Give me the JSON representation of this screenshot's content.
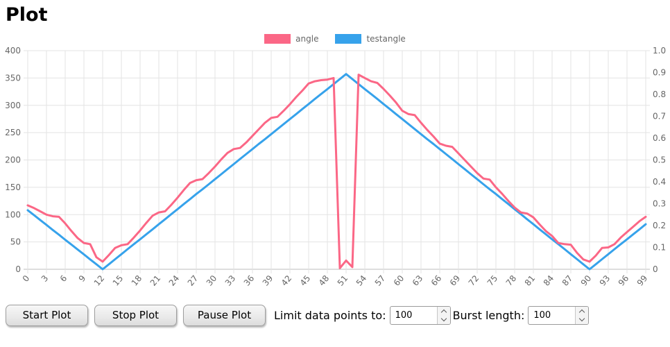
{
  "page": {
    "title": "Plot"
  },
  "controls": {
    "start_label": "Start Plot",
    "stop_label": "Stop Plot",
    "pause_label": "Pause Plot",
    "limit_label": "Limit data points to:",
    "limit_value": "100",
    "burst_label": "Burst length:",
    "burst_value": "100"
  },
  "chart_data": {
    "type": "line",
    "title": "",
    "xlabel": "",
    "ylabel": "",
    "grid": true,
    "legend_position": "top-center",
    "x_tick_step": 3,
    "x": [
      0,
      1,
      2,
      3,
      4,
      5,
      6,
      7,
      8,
      9,
      10,
      11,
      12,
      13,
      14,
      15,
      16,
      17,
      18,
      19,
      20,
      21,
      22,
      23,
      24,
      25,
      26,
      27,
      28,
      29,
      30,
      31,
      32,
      33,
      34,
      35,
      36,
      37,
      38,
      39,
      40,
      41,
      42,
      43,
      44,
      45,
      46,
      47,
      48,
      49,
      50,
      51,
      52,
      53,
      54,
      55,
      56,
      57,
      58,
      59,
      60,
      61,
      62,
      63,
      64,
      65,
      66,
      67,
      68,
      69,
      70,
      71,
      72,
      73,
      74,
      75,
      76,
      77,
      78,
      79,
      80,
      81,
      82,
      83,
      84,
      85,
      86,
      87,
      88,
      89,
      90,
      91,
      92,
      93,
      94,
      95,
      96,
      97,
      98,
      99
    ],
    "axes": {
      "left": {
        "min": 0,
        "max": 400,
        "ticks": [
          0,
          50,
          100,
          150,
          200,
          250,
          300,
          350,
          400
        ],
        "tick_labels": [
          "0",
          "50",
          "100",
          "150",
          "200",
          "250",
          "300",
          "350",
          "400"
        ]
      },
      "right": {
        "min": 0,
        "max": 1,
        "ticks": [
          0,
          0.1,
          0.2,
          0.3,
          0.4,
          0.5,
          0.6,
          0.7,
          0.8,
          0.9,
          1.0
        ],
        "tick_labels": [
          "0",
          "0.1",
          "0.2",
          "0.3",
          "0.4",
          "0.5",
          "0.6",
          "0.7",
          "0.8",
          "0.9",
          "1.0"
        ]
      }
    },
    "series": [
      {
        "name": "angle",
        "color": "#fb6786",
        "axis": "left",
        "values": [
          117,
          112,
          106,
          100,
          97,
          96,
          84,
          70,
          57,
          48,
          46,
          22,
          14,
          26,
          39,
          44,
          46,
          58,
          71,
          85,
          98,
          104,
          106,
          118,
          131,
          145,
          158,
          163,
          165,
          176,
          188,
          201,
          213,
          220,
          222,
          232,
          244,
          256,
          268,
          277,
          279,
          290,
          302,
          315,
          327,
          340,
          344,
          346,
          347,
          350,
          2,
          16,
          4,
          356,
          350,
          344,
          341,
          330,
          318,
          305,
          290,
          284,
          282,
          268,
          255,
          243,
          230,
          226,
          224,
          212,
          200,
          188,
          176,
          166,
          164,
          150,
          138,
          125,
          113,
          104,
          102,
          95,
          82,
          70,
          61,
          48,
          46,
          45,
          30,
          18,
          14,
          25,
          39,
          40,
          46,
          58,
          68,
          78,
          88,
          96
        ]
      },
      {
        "name": "testangle",
        "color": "#36a2eb",
        "axis": "right",
        "values": [
          0.27,
          0.248,
          0.225,
          0.203,
          0.18,
          0.158,
          0.135,
          0.113,
          0.09,
          0.068,
          0.045,
          0.023,
          0,
          0.023,
          0.046,
          0.069,
          0.092,
          0.115,
          0.137,
          0.16,
          0.183,
          0.206,
          0.229,
          0.252,
          0.275,
          0.298,
          0.321,
          0.344,
          0.366,
          0.389,
          0.412,
          0.435,
          0.458,
          0.481,
          0.504,
          0.527,
          0.55,
          0.573,
          0.595,
          0.618,
          0.641,
          0.664,
          0.687,
          0.71,
          0.733,
          0.756,
          0.779,
          0.802,
          0.824,
          0.847,
          0.87,
          0.893,
          0.87,
          0.847,
          0.824,
          0.802,
          0.779,
          0.756,
          0.733,
          0.71,
          0.687,
          0.664,
          0.641,
          0.618,
          0.595,
          0.573,
          0.55,
          0.527,
          0.504,
          0.481,
          0.458,
          0.435,
          0.412,
          0.389,
          0.366,
          0.344,
          0.321,
          0.298,
          0.275,
          0.252,
          0.229,
          0.206,
          0.183,
          0.16,
          0.137,
          0.115,
          0.092,
          0.069,
          0.046,
          0.023,
          0,
          0.023,
          0.046,
          0.069,
          0.092,
          0.115,
          0.137,
          0.16,
          0.183,
          0.206
        ]
      }
    ],
    "colors": {
      "grid": "#e3e3e3",
      "zero_line": "#bdbdbd",
      "tick_text": "#666666"
    }
  }
}
